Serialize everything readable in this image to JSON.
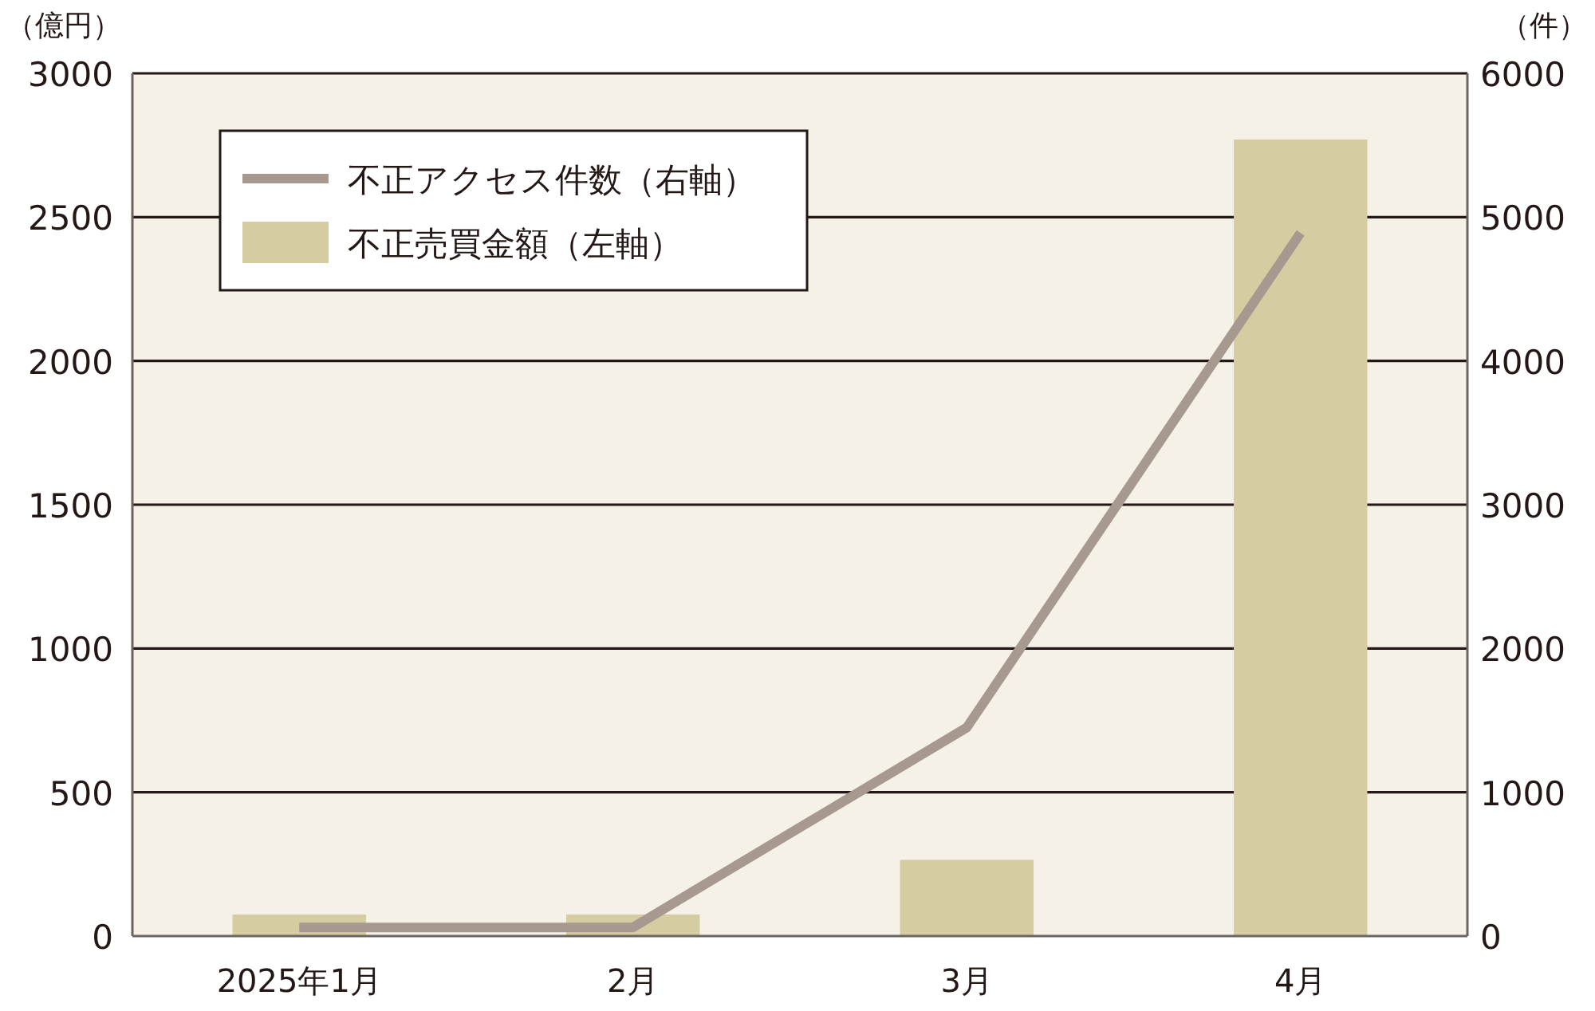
{
  "chart_data": {
    "type": "bar",
    "ylabel": "（億円）",
    "y2label": "（件）",
    "categories": [
      "2025年1月",
      "2月",
      "3月",
      "4月"
    ],
    "series": [
      {
        "name": "不正アクセス件数（右軸）",
        "type": "line",
        "axis": "y2",
        "color": "#a89990",
        "values": [
          60,
          60,
          1450,
          4890
        ]
      },
      {
        "name": "不正売買金額（左軸）",
        "color": "#d5cca2",
        "values": [
          75,
          75,
          265,
          2770
        ]
      }
    ],
    "ylim": [
      0,
      3000
    ],
    "yticks": [
      0,
      500,
      1000,
      1500,
      2000,
      2500,
      3000
    ],
    "y2lim": [
      0,
      6000
    ],
    "y2ticks": [
      0,
      1000,
      2000,
      3000,
      4000,
      5000,
      6000
    ],
    "grid": "y",
    "legend": "top left"
  }
}
